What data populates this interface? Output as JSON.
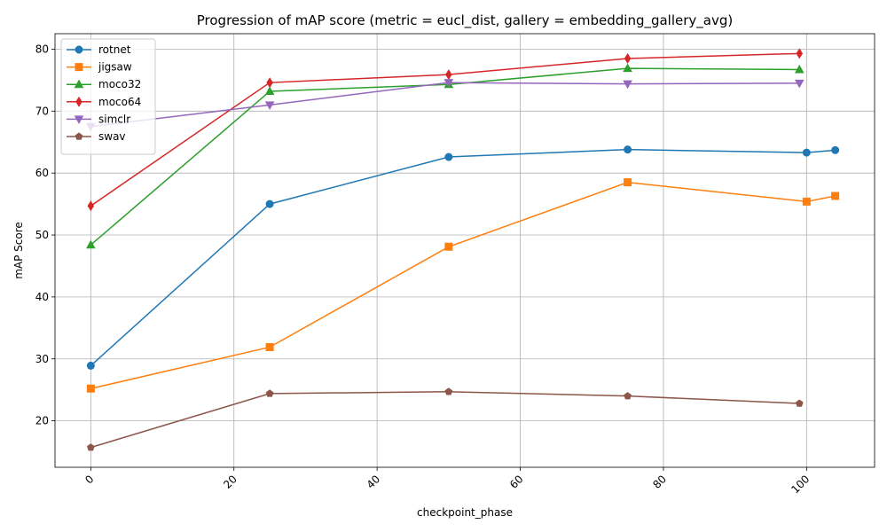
{
  "chart_data": {
    "type": "line",
    "title": "Progression of mAP score (metric = eucl_dist, gallery = embedding_gallery_avg)",
    "xlabel": "checkpoint_phase",
    "ylabel": "mAP Score",
    "xlim": [
      -5,
      109.5
    ],
    "ylim": [
      12.5,
      82.5
    ],
    "xticks": [
      0,
      20,
      40,
      60,
      80,
      100
    ],
    "yticks": [
      20,
      30,
      40,
      50,
      60,
      70,
      80
    ],
    "x_tick_rotation": 45,
    "grid": true,
    "legend_position": "top-left",
    "series": [
      {
        "name": "rotnet",
        "color": "#1f77b4",
        "marker": "circle",
        "x": [
          0,
          25,
          50,
          75,
          100,
          104
        ],
        "y": [
          28.9,
          55.0,
          62.6,
          63.8,
          63.3,
          63.7
        ]
      },
      {
        "name": "jigsaw",
        "color": "#ff7f0e",
        "marker": "square",
        "x": [
          0,
          25,
          50,
          75,
          100,
          104
        ],
        "y": [
          25.2,
          31.9,
          48.1,
          58.5,
          55.4,
          56.3
        ]
      },
      {
        "name": "moco32",
        "color": "#2ca02c",
        "marker": "triangle-up",
        "x": [
          0,
          25,
          50,
          75,
          99
        ],
        "y": [
          48.4,
          73.2,
          74.3,
          76.9,
          76.7
        ]
      },
      {
        "name": "moco64",
        "color": "#d62728",
        "marker": "diamond",
        "x": [
          0,
          25,
          50,
          75,
          99
        ],
        "y": [
          54.7,
          74.6,
          75.9,
          78.5,
          79.3
        ]
      },
      {
        "name": "simclr",
        "color": "#9467bd",
        "marker": "triangle-down",
        "x": [
          0,
          25,
          50,
          75,
          99
        ],
        "y": [
          67.5,
          71.0,
          74.6,
          74.4,
          74.5
        ]
      },
      {
        "name": "swav",
        "color": "#8c564b",
        "marker": "pentagon",
        "x": [
          0,
          25,
          50,
          75,
          99
        ],
        "y": [
          15.7,
          24.4,
          24.7,
          24.0,
          22.8
        ]
      }
    ]
  }
}
